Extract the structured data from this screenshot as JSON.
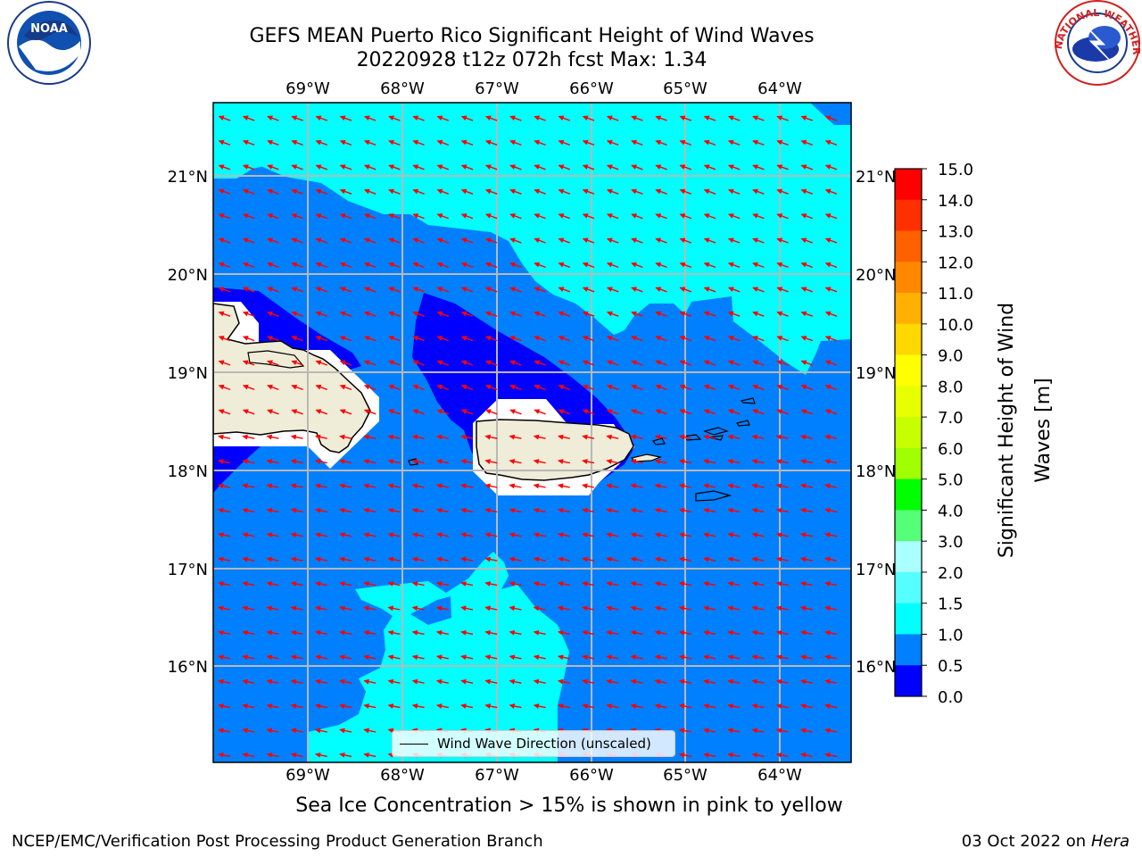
{
  "title": {
    "line1": "GEFS MEAN Puerto Rico Significant Height of Wind Waves",
    "line2": "20220928 t12z 072h fcst   Max: 1.34"
  },
  "logos": {
    "left": {
      "name": "noaa-logo",
      "text": "NOAA"
    },
    "right": {
      "name": "nws-logo",
      "text": "NATIONAL WEATHER SERVICE"
    }
  },
  "map": {
    "lon_labels": [
      "69°W",
      "68°W",
      "67°W",
      "66°W",
      "65°W",
      "64°W"
    ],
    "lat_labels": [
      "21°N",
      "20°N",
      "19°N",
      "18°N",
      "17°N",
      "16°N"
    ],
    "legend_label": "Wind Wave Direction (unscaled)",
    "arrow_color": "#ff0000",
    "land_color": "#efecd8",
    "fill_colors": {
      "0.0-0.5": "#0000ff",
      "0.5-1.0": "#0080ff",
      "1.0-1.5": "#00ffff"
    }
  },
  "colorbar": {
    "label_line1": "Significant Height of Wind",
    "label_line2": "Waves [m]",
    "ticks": [
      "15.0",
      "14.0",
      "13.0",
      "12.0",
      "11.0",
      "10.0",
      "9.0",
      "8.0",
      "7.0",
      "6.0",
      "5.0",
      "4.0",
      "3.0",
      "2.0",
      "1.5",
      "1.0",
      "0.5",
      "0.0"
    ],
    "colors": [
      "#ff0000",
      "#ff3000",
      "#ff6000",
      "#ff8800",
      "#ffb000",
      "#ffd800",
      "#ffff00",
      "#e8ff00",
      "#c8ff00",
      "#a0ff00",
      "#00ff00",
      "#55ff78",
      "#aaffff",
      "#55ffff",
      "#00ffff",
      "#0080ff",
      "#0000ff"
    ]
  },
  "caption": "Sea Ice Concentration > 15% is shown in pink to yellow",
  "footer": {
    "left": "NCEP/EMC/Verification Post Processing Product Generation Branch",
    "right_prefix": "03 Oct 2022 on ",
    "right_host": "Hera"
  }
}
